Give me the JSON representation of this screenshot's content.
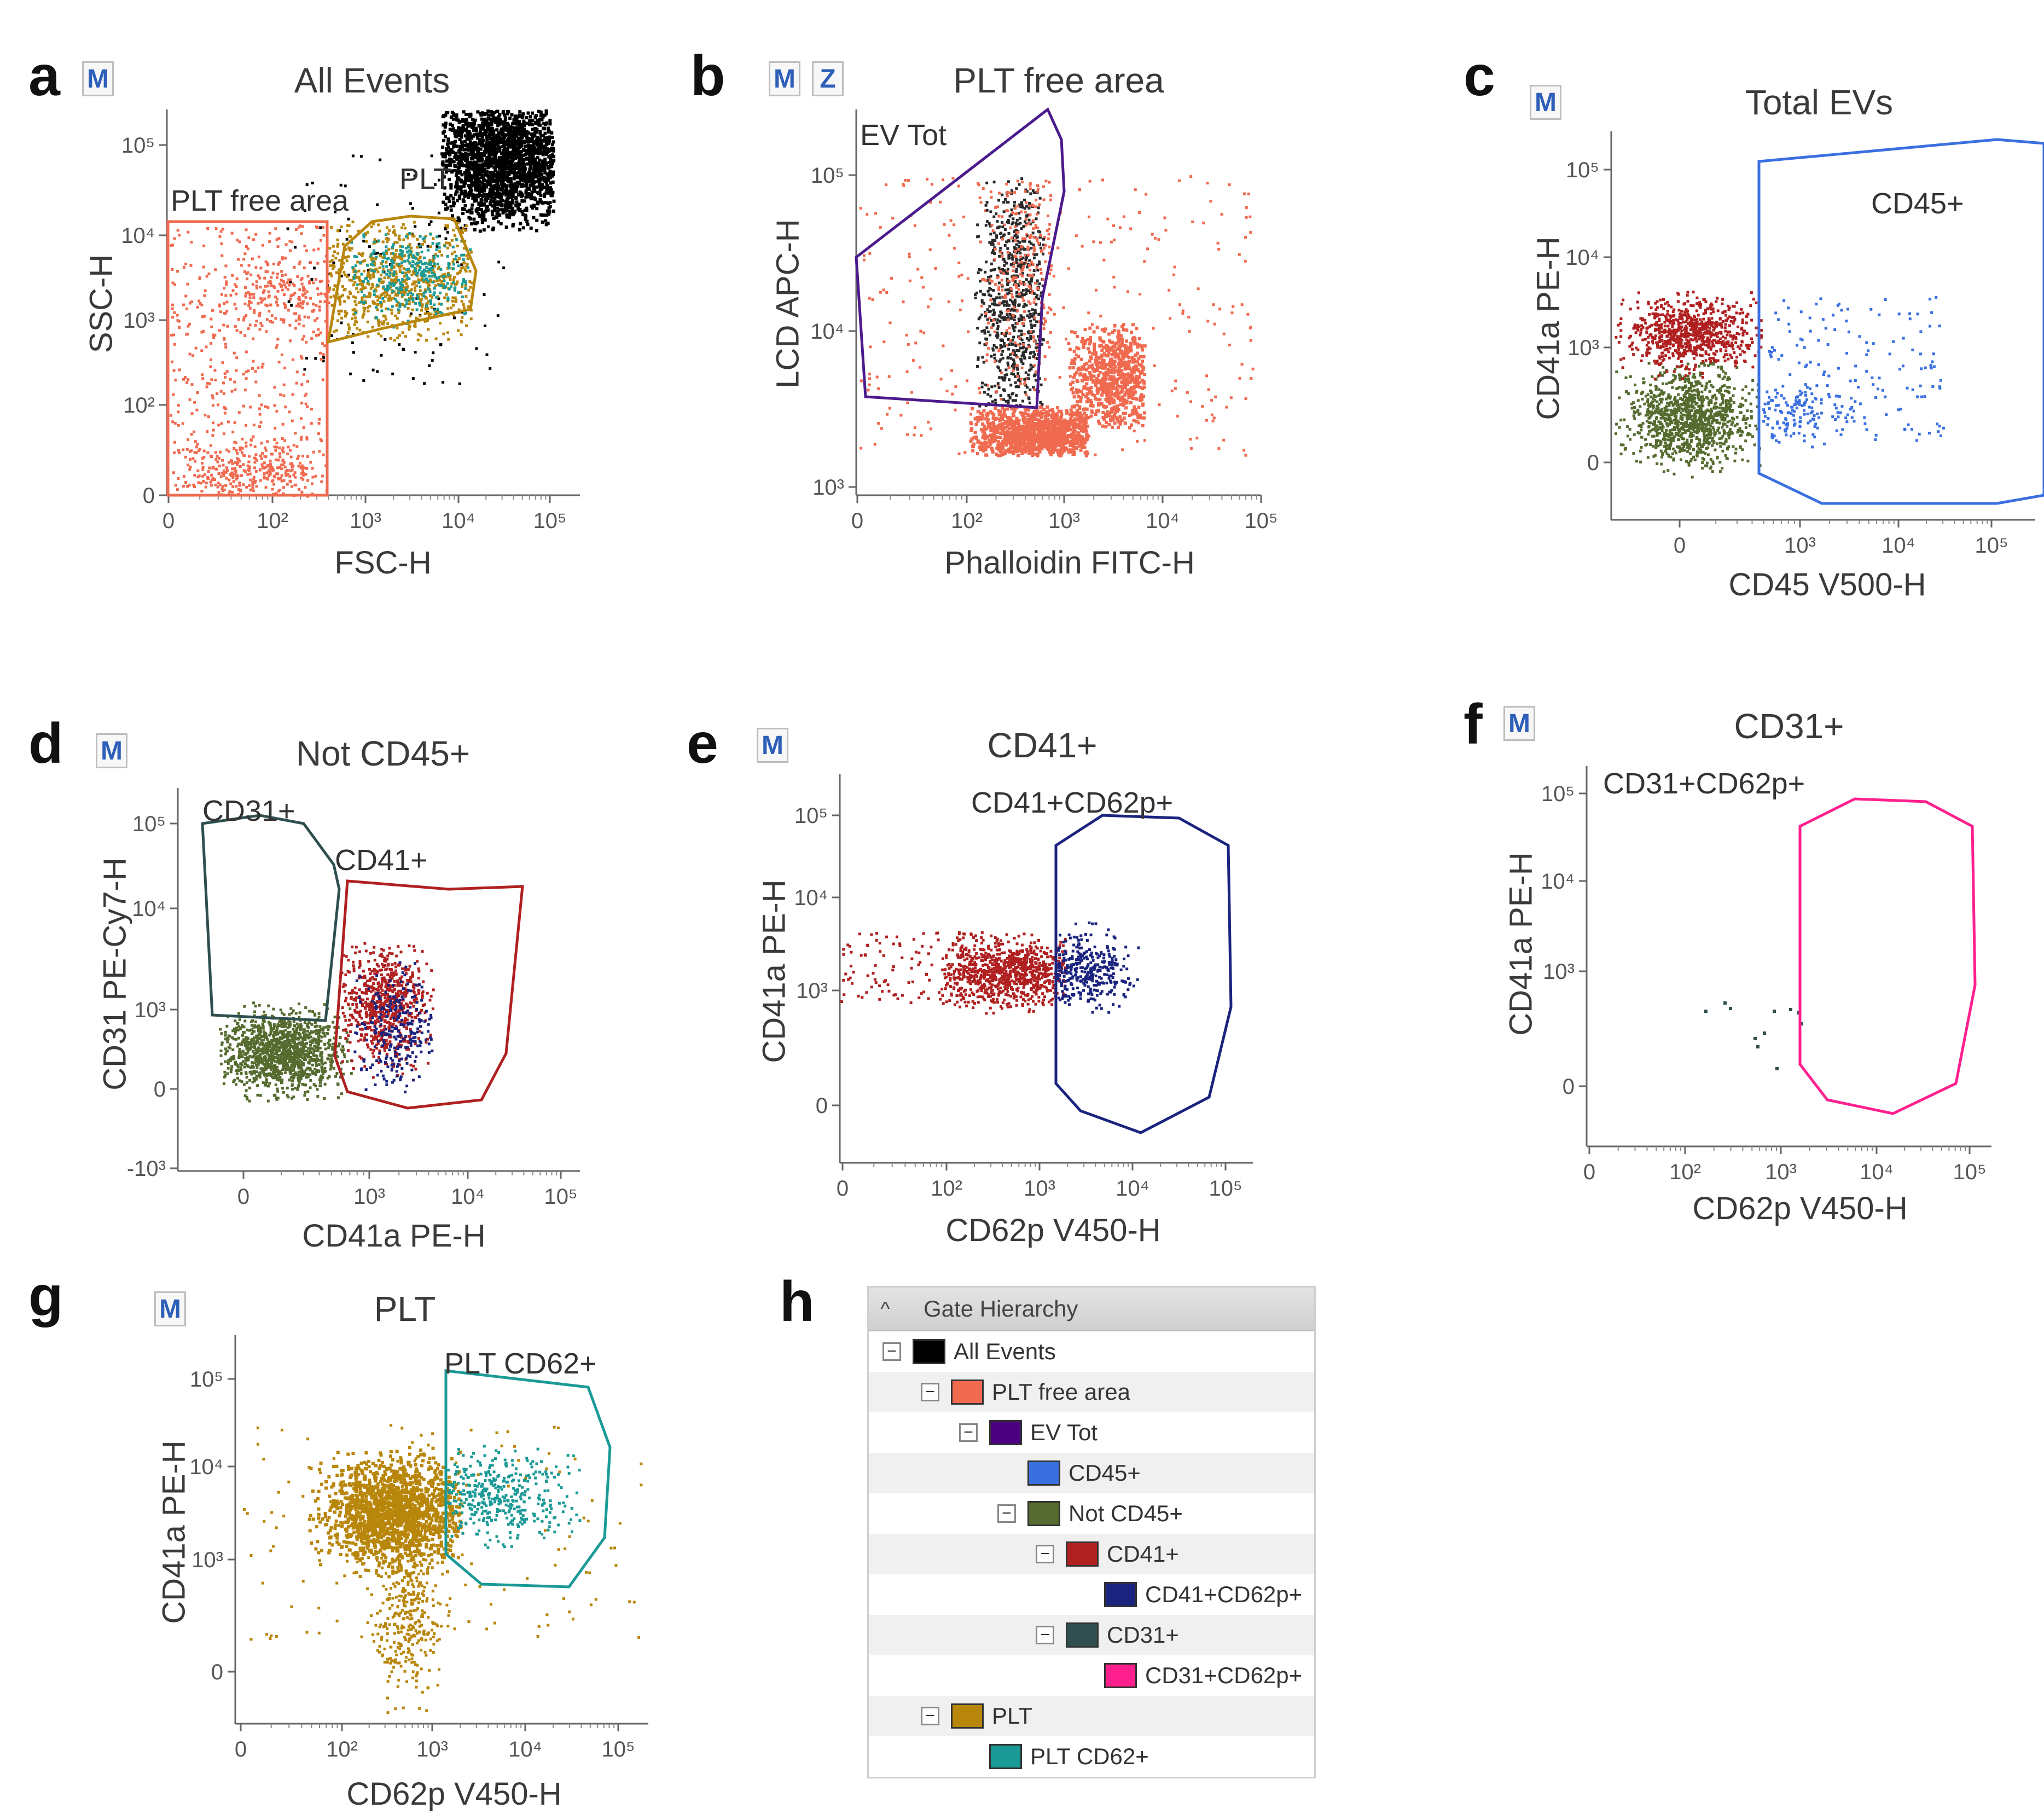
{
  "chart_data": [
    {
      "panel": "a",
      "type": "scatter",
      "title": "All Events",
      "buttons": [
        "M"
      ],
      "xlabel": "FSC-H",
      "ylabel": "SSC-H",
      "x_ticks": [
        "0",
        "10²",
        "10³",
        "10⁴",
        "10⁵"
      ],
      "y_ticks": [
        "0",
        "10²",
        "10³",
        "10⁴",
        "10⁵"
      ],
      "gates": [
        {
          "name": "PLT free area",
          "color": "#f06a50",
          "label": "PLT free area"
        },
        {
          "name": "PLT",
          "color": "#b8860b",
          "label": "PLT"
        }
      ],
      "populations": [
        {
          "name": "PLT free area events",
          "color": "#f06a50"
        },
        {
          "name": "PLT events",
          "color": "#b8860b"
        },
        {
          "name": "PLT CD62+ events",
          "color": "#1a9a96"
        },
        {
          "name": "Ungated events",
          "color": "#000000"
        }
      ]
    },
    {
      "panel": "b",
      "type": "scatter",
      "title": "PLT free area",
      "buttons": [
        "M",
        "Z"
      ],
      "xlabel": "Phalloidin FITC-H",
      "ylabel": "LCD APC-H",
      "x_ticks": [
        "0",
        "10²",
        "10³",
        "10⁴",
        "10⁵"
      ],
      "y_ticks": [
        "10³",
        "10⁴",
        "10⁵"
      ],
      "gates": [
        {
          "name": "EV Tot",
          "color": "#4b1a8c",
          "label": "EV Tot"
        }
      ],
      "populations": [
        {
          "name": "PLT free area events",
          "color": "#f06a50"
        },
        {
          "name": "EV Tot events",
          "color": "#2a2a2a"
        }
      ]
    },
    {
      "panel": "c",
      "type": "scatter",
      "title": "Total EVs",
      "buttons": [
        "M"
      ],
      "xlabel": "CD45 V500-H",
      "ylabel": "CD41a PE-H",
      "x_ticks": [
        "0",
        "10³",
        "10⁴",
        "10⁵"
      ],
      "y_ticks": [
        "0",
        "10³",
        "10⁴",
        "10⁵"
      ],
      "gates": [
        {
          "name": "CD45+",
          "color": "#3a6fe0",
          "label": "CD45+"
        }
      ],
      "populations": [
        {
          "name": "CD41+ events",
          "color": "#b02020"
        },
        {
          "name": "Not CD45+ events",
          "color": "#556b2f"
        },
        {
          "name": "CD45+ events",
          "color": "#3a6fe0"
        }
      ]
    },
    {
      "panel": "d",
      "type": "scatter",
      "title": "Not CD45+",
      "buttons": [
        "M"
      ],
      "xlabel": "CD41a PE-H",
      "ylabel": "CD31 PE-Cy7-H",
      "x_ticks": [
        "0",
        "10³",
        "10⁴",
        "10⁵"
      ],
      "y_ticks": [
        "-10³",
        "0",
        "10³",
        "10⁴",
        "10⁵"
      ],
      "gates": [
        {
          "name": "CD31+",
          "color": "#2f4f4f",
          "label": "CD31+"
        },
        {
          "name": "CD41+",
          "color": "#b02020",
          "label": "CD41+"
        }
      ],
      "populations": [
        {
          "name": "Not CD45+ events",
          "color": "#556b2f"
        },
        {
          "name": "CD41+ events",
          "color": "#b02020"
        },
        {
          "name": "CD41+CD62p+ events",
          "color": "#1a237e"
        }
      ]
    },
    {
      "panel": "e",
      "type": "scatter",
      "title": "CD41+",
      "buttons": [
        "M"
      ],
      "xlabel": "CD62p V450-H",
      "ylabel": "CD41a PE-H",
      "x_ticks": [
        "0",
        "10²",
        "10³",
        "10⁴",
        "10⁵"
      ],
      "y_ticks": [
        "0",
        "10³",
        "10⁴",
        "10⁵"
      ],
      "gates": [
        {
          "name": "CD41+CD62p+",
          "color": "#1a237e",
          "label": "CD41+CD62p+"
        }
      ],
      "populations": [
        {
          "name": "CD41+ events",
          "color": "#b02020"
        },
        {
          "name": "CD41+CD62p+ events",
          "color": "#1a237e"
        }
      ]
    },
    {
      "panel": "f",
      "type": "scatter",
      "title": "CD31+",
      "buttons": [
        "M"
      ],
      "xlabel": "CD62p V450-H",
      "ylabel": "CD41a PE-H",
      "x_ticks": [
        "0",
        "10²",
        "10³",
        "10⁴",
        "10⁵"
      ],
      "y_ticks": [
        "0",
        "10³",
        "10⁴",
        "10⁵"
      ],
      "gates": [
        {
          "name": "CD31+CD62p+",
          "color": "#ff1f8f",
          "label": "CD31+CD62p+"
        }
      ],
      "populations": [
        {
          "name": "CD31+ events",
          "color": "#2f4f4f"
        }
      ]
    },
    {
      "panel": "g",
      "type": "scatter",
      "title": "PLT",
      "buttons": [
        "M"
      ],
      "xlabel": "CD62p V450-H",
      "ylabel": "CD41a PE-H",
      "x_ticks": [
        "0",
        "10²",
        "10³",
        "10⁴",
        "10⁵"
      ],
      "y_ticks": [
        "0",
        "10³",
        "10⁴",
        "10⁵"
      ],
      "gates": [
        {
          "name": "PLT CD62+",
          "color": "#1a9a96",
          "label": "PLT CD62+"
        }
      ],
      "populations": [
        {
          "name": "PLT events",
          "color": "#b8860b"
        },
        {
          "name": "PLT CD62+ events",
          "color": "#1a9a96"
        }
      ]
    }
  ],
  "gate_hierarchy": {
    "panel": "h",
    "title": "Gate Hierarchy",
    "collapse_glyph": "^",
    "expand_glyph": "−",
    "rows": [
      {
        "name": "All Events",
        "color": "#000000",
        "level": 0,
        "expander": true
      },
      {
        "name": "PLT free area",
        "color": "#f06a50",
        "level": 1,
        "expander": true
      },
      {
        "name": "EV Tot",
        "color": "#4b0082",
        "level": 2,
        "expander": true
      },
      {
        "name": "CD45+",
        "color": "#3a6fe0",
        "level": 3,
        "expander": false
      },
      {
        "name": "Not CD45+",
        "color": "#556b2f",
        "level": 3,
        "expander": true
      },
      {
        "name": "CD41+",
        "color": "#b02020",
        "level": 4,
        "expander": true
      },
      {
        "name": "CD41+CD62p+",
        "color": "#1a237e",
        "level": 5,
        "expander": false
      },
      {
        "name": "CD31+",
        "color": "#2f4f4f",
        "level": 4,
        "expander": true
      },
      {
        "name": "CD31+CD62p+",
        "color": "#ff1f8f",
        "level": 5,
        "expander": false
      },
      {
        "name": "PLT",
        "color": "#b8860b",
        "level": 1,
        "expander": true
      },
      {
        "name": "PLT CD62+",
        "color": "#1a9a96",
        "level": 2,
        "expander": false
      }
    ]
  },
  "panel_letters": [
    "a",
    "b",
    "c",
    "d",
    "e",
    "f",
    "g",
    "h"
  ]
}
